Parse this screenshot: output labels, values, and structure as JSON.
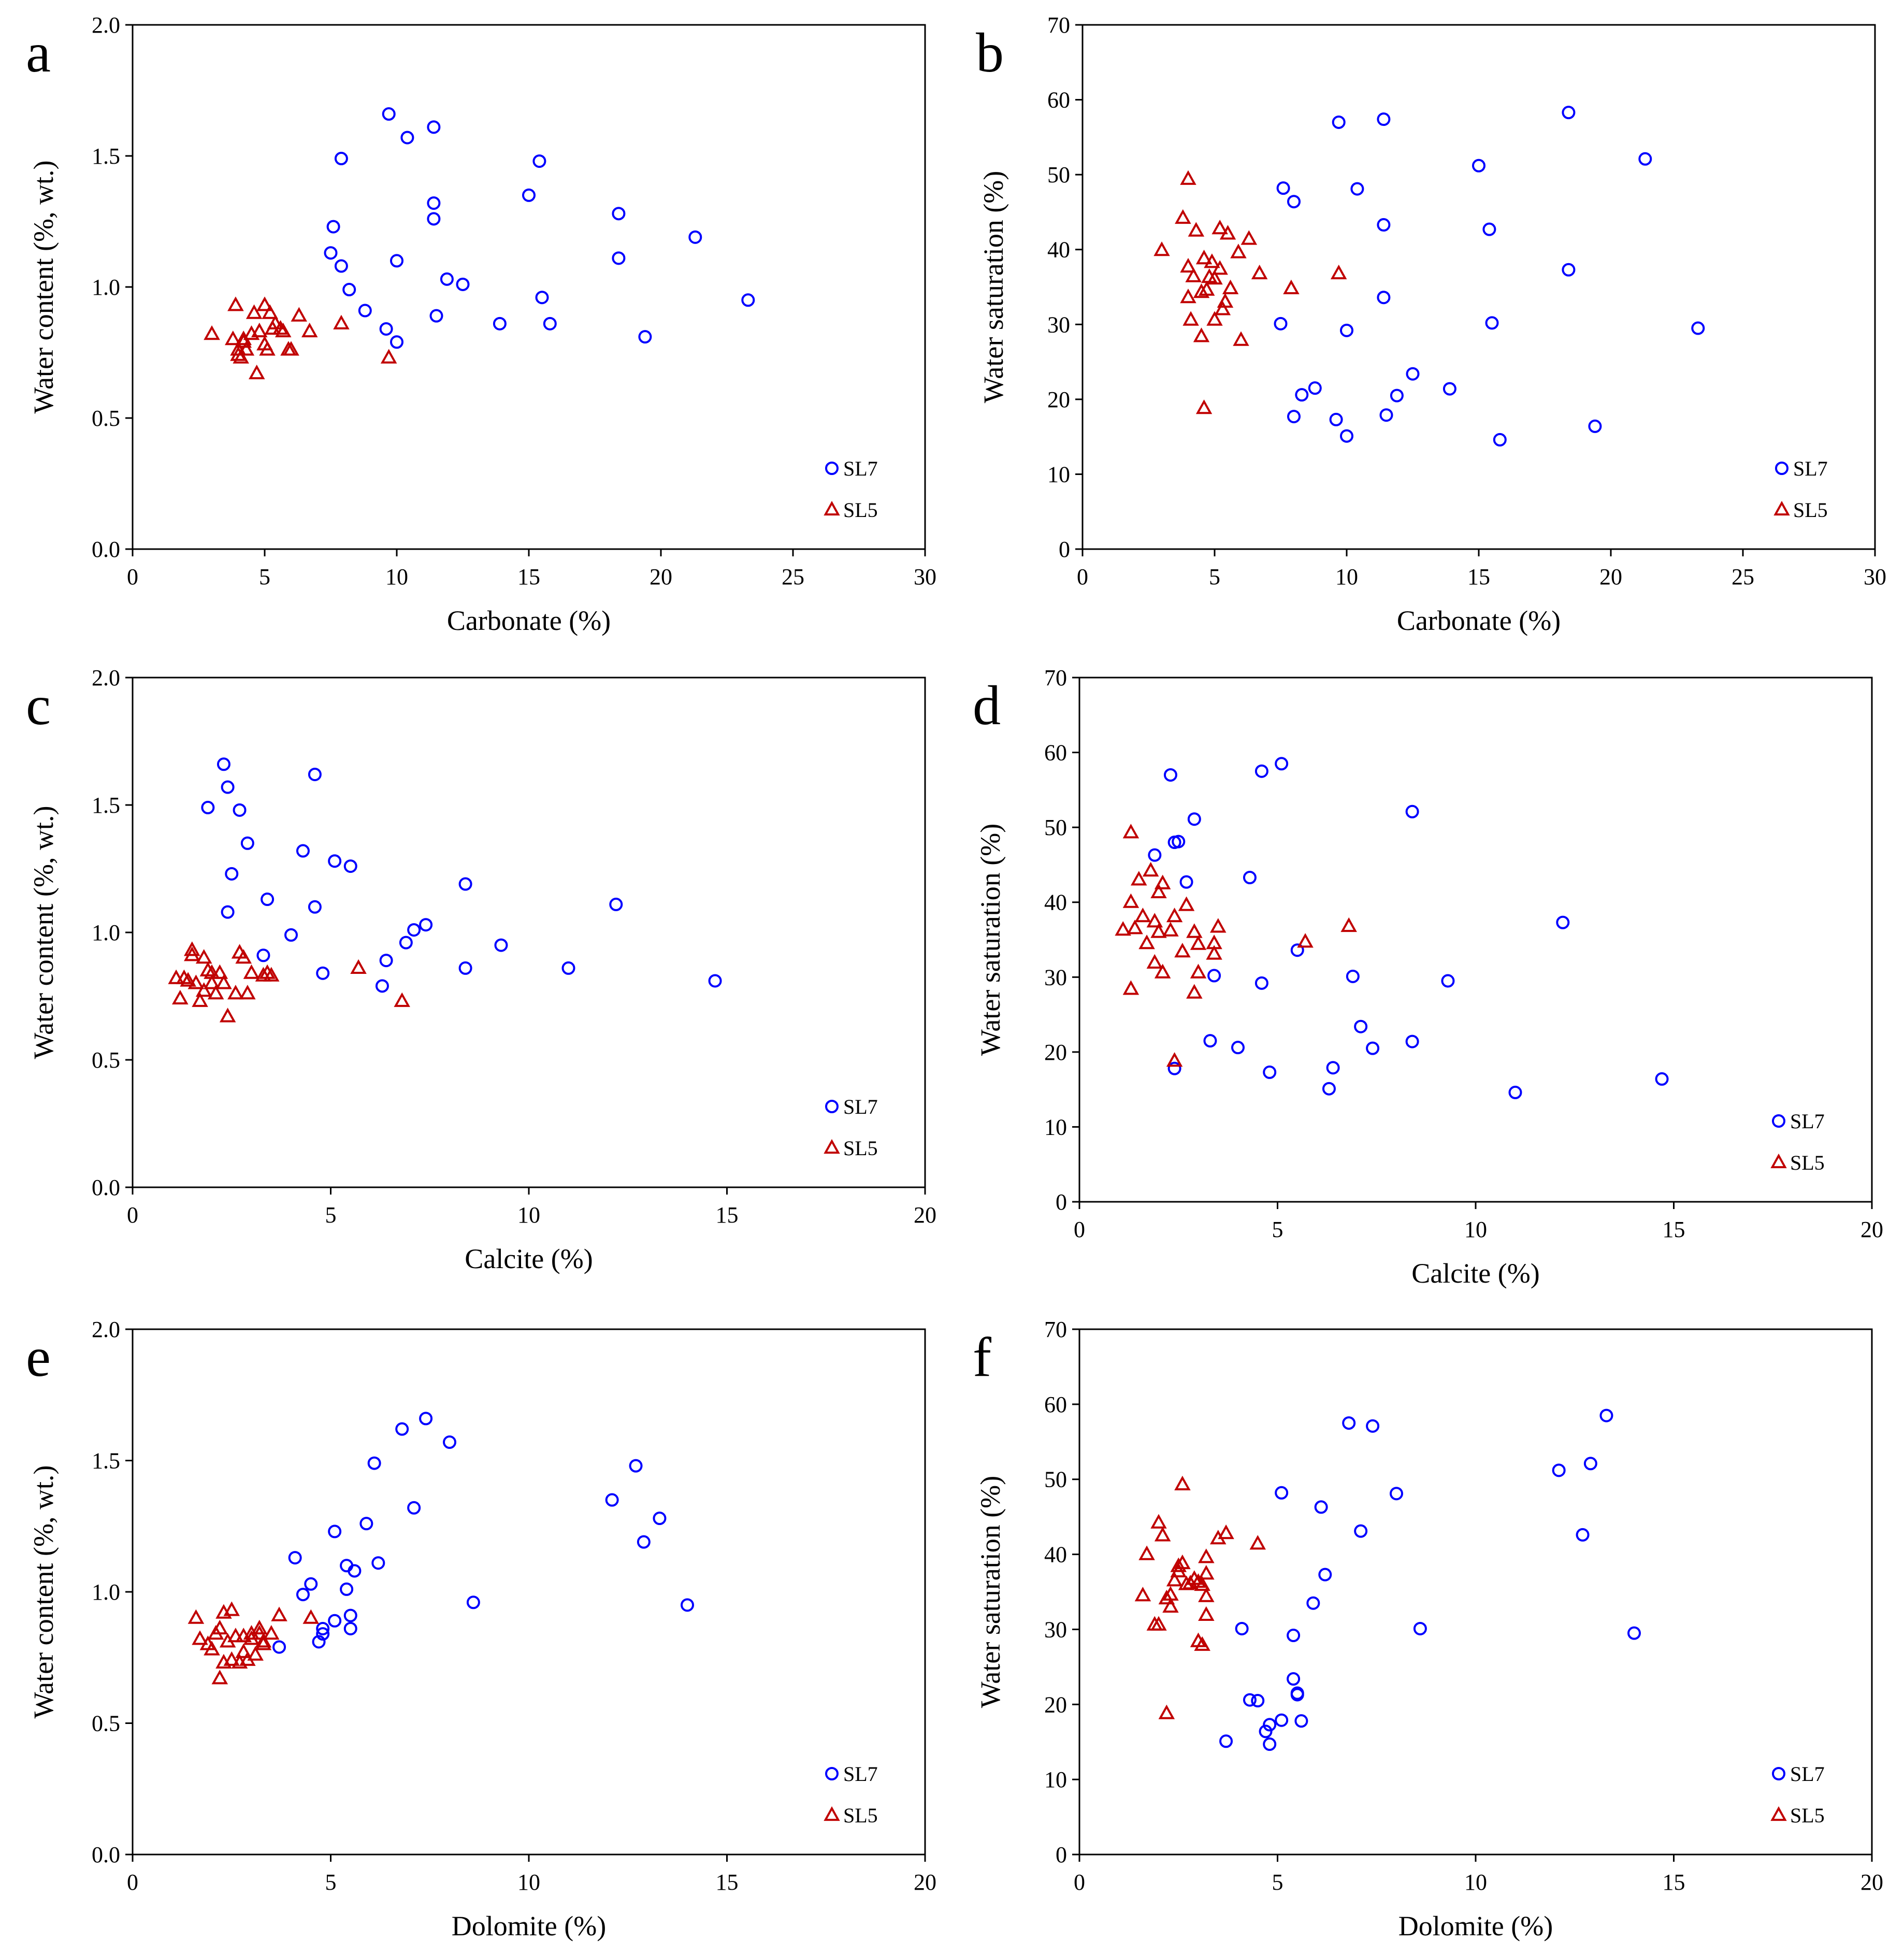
{
  "colors": {
    "SL7": "#0000ff",
    "SL5": "#c00000",
    "axis": "#000000",
    "frame": "#000000"
  },
  "chart_data": [
    {
      "panel": "a",
      "type": "scatter",
      "xlabel": "Carbonate (%)",
      "ylabel": "Water content (%, wt.)",
      "xlim": [
        0,
        30
      ],
      "ylim": [
        0,
        2
      ],
      "xticks": [
        0,
        5,
        10,
        15,
        20,
        25,
        30
      ],
      "yticks": [
        "0.0",
        "0.5",
        "1.0",
        "1.5",
        "2.0"
      ],
      "grid": false,
      "legend": "bottom-right",
      "series": [
        {
          "name": "SL7",
          "marker": "circle",
          "x": [
            9.7,
            10.4,
            11.4,
            7.9,
            15.4,
            11.4,
            15.0,
            18.4,
            11.4,
            7.6,
            21.3,
            7.5,
            7.9,
            10.0,
            18.4,
            11.9,
            12.5,
            8.2,
            15.5,
            23.3,
            8.8,
            11.5,
            13.9,
            15.8,
            9.6,
            19.4,
            10.0
          ],
          "y": [
            1.66,
            1.57,
            1.61,
            1.49,
            1.48,
            1.32,
            1.35,
            1.28,
            1.26,
            1.23,
            1.19,
            1.13,
            1.08,
            1.1,
            1.11,
            1.03,
            1.01,
            0.99,
            0.96,
            0.95,
            0.91,
            0.89,
            0.86,
            0.86,
            0.84,
            0.81,
            0.79
          ]
        },
        {
          "name": "SL5",
          "marker": "triangle",
          "x": [
            3.0,
            3.8,
            3.9,
            4.0,
            4.1,
            4.2,
            4.3,
            4.5,
            4.6,
            4.7,
            4.8,
            5.0,
            5.0,
            5.1,
            5.2,
            5.3,
            5.4,
            5.6,
            5.7,
            5.9,
            6.0,
            6.3,
            6.7,
            7.9,
            9.7,
            4.2,
            4.0
          ],
          "y": [
            0.82,
            0.8,
            0.93,
            0.74,
            0.73,
            0.79,
            0.76,
            0.82,
            0.9,
            0.67,
            0.83,
            0.93,
            0.78,
            0.76,
            0.9,
            0.84,
            0.86,
            0.84,
            0.83,
            0.76,
            0.76,
            0.89,
            0.83,
            0.86,
            0.73,
            0.8,
            0.76
          ]
        }
      ]
    },
    {
      "panel": "b",
      "type": "scatter",
      "xlabel": "Carbonate (%)",
      "ylabel": "Water saturation (%)",
      "xlim": [
        0,
        30
      ],
      "ylim": [
        0,
        70
      ],
      "xticks": [
        0,
        5,
        10,
        15,
        20,
        25,
        30
      ],
      "yticks": [
        "0",
        "10",
        "20",
        "30",
        "40",
        "50",
        "60",
        "70"
      ],
      "grid": false,
      "legend": "bottom-right",
      "series": [
        {
          "name": "SL7",
          "marker": "circle",
          "x": [
            18.4,
            9.7,
            11.4,
            21.3,
            15.0,
            7.6,
            8.0,
            10.4,
            11.4,
            15.4,
            18.4,
            11.4,
            7.5,
            15.5,
            10.0,
            23.3,
            12.5,
            13.9,
            8.8,
            8.3,
            11.9,
            8.0,
            11.5,
            9.6,
            19.4,
            10.0,
            15.8
          ],
          "y": [
            58.3,
            57.0,
            57.4,
            52.1,
            51.2,
            48.2,
            46.4,
            48.1,
            43.3,
            42.7,
            37.3,
            33.6,
            30.1,
            30.2,
            29.2,
            29.5,
            23.4,
            21.4,
            21.5,
            20.6,
            20.5,
            17.7,
            17.9,
            17.3,
            16.4,
            15.1,
            14.6
          ]
        },
        {
          "name": "SL5",
          "marker": "triangle",
          "x": [
            4.0,
            3.8,
            3.0,
            4.3,
            5.2,
            5.5,
            6.3,
            5.9,
            4.6,
            4.0,
            4.2,
            4.9,
            5.2,
            5.0,
            5.6,
            6.7,
            9.7,
            4.0,
            4.5,
            4.7,
            5.3,
            7.9,
            4.8,
            5.4,
            5.0,
            4.1,
            4.5,
            6.0,
            4.6
          ],
          "y": [
            49.4,
            44.2,
            39.9,
            42.5,
            42.8,
            42.1,
            41.4,
            39.6,
            38.8,
            37.7,
            36.4,
            38.3,
            37.4,
            36.1,
            34.8,
            36.8,
            36.8,
            33.6,
            34.3,
            34.6,
            32.0,
            34.8,
            36.3,
            33.0,
            30.6,
            30.6,
            28.4,
            27.9,
            18.8
          ]
        }
      ]
    },
    {
      "panel": "c",
      "type": "scatter",
      "xlabel": "Calcite (%)",
      "ylabel": "Water content (%, wt.)",
      "xlim": [
        0,
        20
      ],
      "ylim": [
        0,
        2
      ],
      "xticks": [
        0,
        5,
        10,
        15,
        20
      ],
      "yticks": [
        "0.0",
        "0.5",
        "1.0",
        "1.5",
        "2.0"
      ],
      "grid": false,
      "legend": "bottom-right",
      "series": [
        {
          "name": "SL7",
          "marker": "circle",
          "x": [
            2.3,
            2.4,
            4.6,
            1.9,
            2.7,
            2.9,
            4.3,
            5.1,
            5.5,
            2.5,
            3.4,
            4.6,
            8.4,
            12.2,
            2.4,
            4.0,
            7.4,
            7.1,
            6.9,
            9.3,
            3.3,
            6.4,
            8.4,
            11.0,
            4.8,
            6.3,
            14.7
          ],
          "y": [
            1.66,
            1.57,
            1.62,
            1.49,
            1.48,
            1.35,
            1.32,
            1.28,
            1.26,
            1.23,
            1.13,
            1.1,
            1.19,
            1.11,
            1.08,
            0.99,
            1.03,
            1.01,
            0.96,
            0.95,
            0.91,
            0.89,
            0.86,
            0.86,
            0.84,
            0.79,
            0.81
          ]
        },
        {
          "name": "SL5",
          "marker": "triangle",
          "x": [
            1.1,
            1.3,
            1.4,
            1.5,
            1.5,
            1.6,
            1.7,
            1.8,
            1.8,
            1.9,
            2.0,
            2.0,
            2.1,
            2.2,
            2.3,
            2.4,
            2.6,
            2.7,
            2.8,
            2.9,
            3.0,
            3.3,
            3.4,
            3.5,
            5.7,
            6.8,
            1.2
          ],
          "y": [
            0.82,
            0.82,
            0.81,
            0.93,
            0.91,
            0.8,
            0.73,
            0.9,
            0.77,
            0.85,
            0.8,
            0.84,
            0.76,
            0.84,
            0.8,
            0.67,
            0.76,
            0.92,
            0.9,
            0.76,
            0.84,
            0.83,
            0.84,
            0.83,
            0.86,
            0.73,
            0.74
          ]
        }
      ]
    },
    {
      "panel": "d",
      "type": "scatter",
      "xlabel": "Calcite (%)",
      "ylabel": "Water saturation (%)",
      "xlim": [
        0,
        20
      ],
      "ylim": [
        0,
        70
      ],
      "xticks": [
        0,
        5,
        10,
        15,
        20
      ],
      "yticks": [
        "0",
        "10",
        "20",
        "30",
        "40",
        "50",
        "60",
        "70"
      ],
      "grid": false,
      "legend": "bottom-right",
      "series": [
        {
          "name": "SL7",
          "marker": "circle",
          "x": [
            5.1,
            4.6,
            2.3,
            8.4,
            2.9,
            2.5,
            2.4,
            1.9,
            4.3,
            2.7,
            12.2,
            5.5,
            3.4,
            6.9,
            4.6,
            9.3,
            7.1,
            3.3,
            8.4,
            4.0,
            7.4,
            4.8,
            6.4,
            2.4,
            14.7,
            6.3,
            11.0
          ],
          "y": [
            58.5,
            57.5,
            57.0,
            52.1,
            51.1,
            48.1,
            48.0,
            46.3,
            43.3,
            42.7,
            37.3,
            33.6,
            30.2,
            30.1,
            29.2,
            29.5,
            23.4,
            21.5,
            21.4,
            20.6,
            20.5,
            17.3,
            17.9,
            17.8,
            16.4,
            15.1,
            14.6
          ]
        },
        {
          "name": "SL5",
          "marker": "triangle",
          "x": [
            1.3,
            1.8,
            1.5,
            2.1,
            1.3,
            2.0,
            1.6,
            2.4,
            1.9,
            2.7,
            1.4,
            2.0,
            3.5,
            6.8,
            2.3,
            1.1,
            2.9,
            1.7,
            3.0,
            3.4,
            1.9,
            3.4,
            2.6,
            2.1,
            3.0,
            1.3,
            2.9,
            5.7,
            2.4
          ],
          "y": [
            49.3,
            44.2,
            43.0,
            42.5,
            40.0,
            41.3,
            38.1,
            38.1,
            37.4,
            39.6,
            36.5,
            36.0,
            36.7,
            36.8,
            36.2,
            36.3,
            36.0,
            34.5,
            34.4,
            34.5,
            31.9,
            33.1,
            33.4,
            30.6,
            30.6,
            28.4,
            27.9,
            34.7,
            18.8
          ]
        }
      ]
    },
    {
      "panel": "e",
      "type": "scatter",
      "xlabel": "Dolomite (%)",
      "ylabel": "Water content (%, wt.)",
      "xlim": [
        0,
        20
      ],
      "ylim": [
        0,
        2
      ],
      "xticks": [
        0,
        5,
        10,
        15,
        20
      ],
      "yticks": [
        "0.0",
        "0.5",
        "1.0",
        "1.5",
        "2.0"
      ],
      "grid": false,
      "legend": "bottom-right",
      "series": [
        {
          "name": "SL7",
          "marker": "circle",
          "x": [
            7.4,
            6.8,
            8.0,
            6.1,
            12.7,
            12.1,
            7.1,
            13.3,
            5.9,
            5.1,
            12.9,
            4.1,
            6.2,
            5.4,
            5.6,
            4.5,
            4.3,
            5.4,
            8.6,
            14.0,
            5.5,
            5.1,
            4.8,
            5.5,
            4.8,
            4.7,
            3.7
          ],
          "y": [
            1.66,
            1.62,
            1.57,
            1.49,
            1.48,
            1.35,
            1.32,
            1.28,
            1.26,
            1.23,
            1.19,
            1.13,
            1.11,
            1.1,
            1.08,
            1.03,
            0.99,
            1.01,
            0.96,
            0.95,
            0.91,
            0.89,
            0.86,
            0.86,
            0.84,
            0.81,
            0.79
          ]
        },
        {
          "name": "SL5",
          "marker": "triangle",
          "x": [
            1.6,
            1.7,
            1.9,
            2.0,
            2.1,
            2.2,
            2.3,
            2.3,
            2.4,
            2.5,
            2.6,
            2.7,
            2.8,
            2.9,
            3.0,
            3.1,
            3.2,
            3.3,
            3.5,
            3.7,
            4.5,
            2.2,
            2.5,
            2.8,
            3.3,
            3.0,
            3.2
          ],
          "y": [
            0.9,
            0.82,
            0.8,
            0.78,
            0.84,
            0.67,
            0.92,
            0.73,
            0.81,
            0.93,
            0.83,
            0.73,
            0.77,
            0.74,
            0.82,
            0.76,
            0.84,
            0.81,
            0.84,
            0.91,
            0.9,
            0.86,
            0.74,
            0.83,
            0.8,
            0.84,
            0.86
          ]
        }
      ]
    },
    {
      "panel": "f",
      "type": "scatter",
      "xlabel": "Dolomite (%)",
      "ylabel": "Water saturation (%)",
      "xlim": [
        0,
        20
      ],
      "ylim": [
        0,
        70
      ],
      "xticks": [
        0,
        5,
        10,
        15,
        20
      ],
      "yticks": [
        "0",
        "10",
        "20",
        "30",
        "40",
        "50",
        "60",
        "70"
      ],
      "grid": false,
      "legend": "bottom-right",
      "series": [
        {
          "name": "SL7",
          "marker": "circle",
          "x": [
            13.3,
            6.8,
            7.4,
            12.9,
            12.1,
            5.1,
            8.0,
            6.1,
            7.1,
            12.7,
            6.2,
            5.9,
            4.1,
            8.6,
            5.4,
            14.0,
            5.4,
            5.5,
            5.5,
            4.3,
            4.5,
            5.1,
            4.8,
            4.7,
            5.6,
            3.7,
            4.8
          ],
          "y": [
            58.5,
            57.5,
            57.1,
            52.1,
            51.2,
            48.2,
            48.1,
            46.3,
            43.1,
            42.6,
            37.3,
            33.5,
            30.1,
            30.1,
            29.2,
            29.5,
            23.4,
            21.5,
            21.3,
            20.6,
            20.5,
            17.9,
            17.3,
            16.4,
            17.8,
            15.1,
            14.7
          ]
        },
        {
          "name": "SL5",
          "marker": "triangle",
          "x": [
            2.6,
            2.0,
            2.1,
            1.7,
            3.7,
            3.5,
            4.5,
            3.2,
            2.6,
            2.5,
            2.5,
            2.4,
            2.8,
            2.9,
            3.0,
            3.2,
            3.1,
            2.3,
            2.2,
            1.6,
            3.2,
            2.3,
            2.0,
            1.9,
            3.2,
            3.0,
            3.1,
            2.2,
            2.7
          ],
          "y": [
            49.3,
            44.2,
            42.5,
            40.0,
            42.8,
            42.1,
            41.4,
            39.6,
            38.8,
            37.7,
            38.4,
            36.5,
            36.1,
            36.7,
            36.3,
            37.4,
            35.9,
            34.6,
            34.1,
            34.5,
            34.4,
            33.0,
            30.6,
            30.6,
            31.9,
            28.4,
            27.9,
            18.8,
            36.0
          ]
        }
      ]
    }
  ]
}
